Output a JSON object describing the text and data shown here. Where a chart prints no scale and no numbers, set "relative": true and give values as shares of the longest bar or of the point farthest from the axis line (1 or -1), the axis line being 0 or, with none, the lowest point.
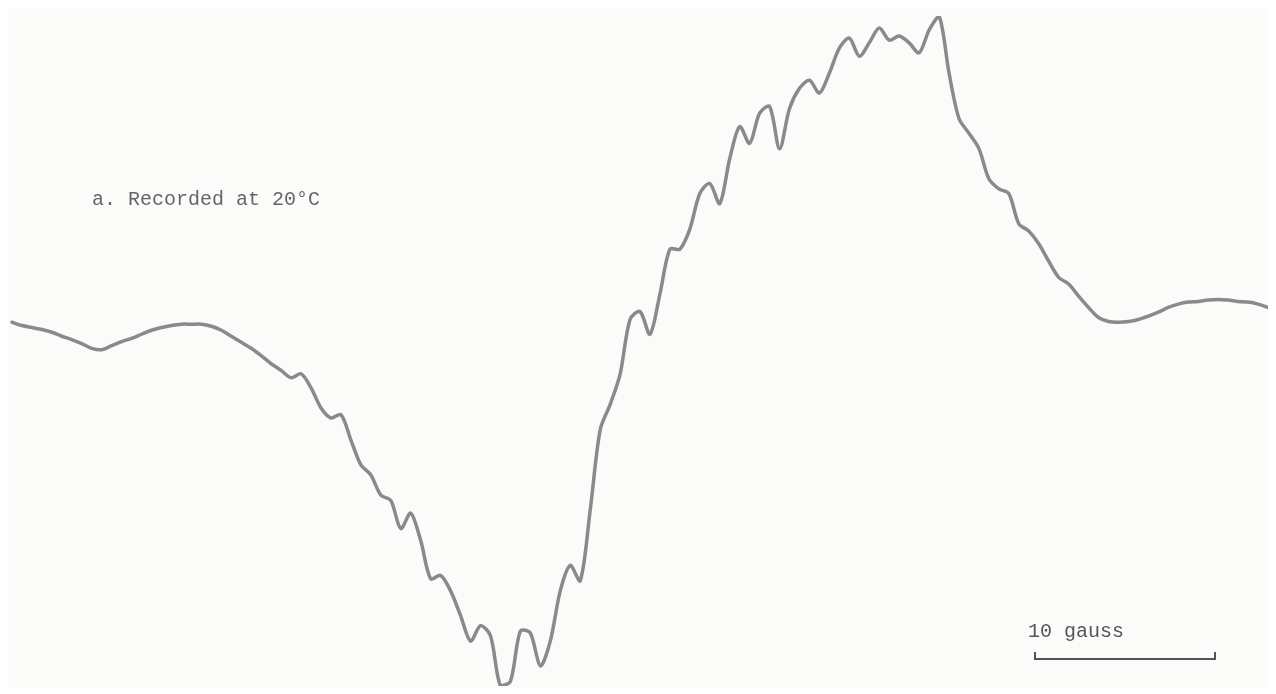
{
  "chart_data": {
    "type": "line",
    "relative": true,
    "color": "#8a8a8a",
    "marker": "none",
    "line_style": "solid",
    "legend": false,
    "tick_labels": false,
    "categories": [
      null,
      null,
      null,
      null,
      null,
      null,
      null,
      null,
      null,
      null,
      null,
      null,
      null,
      null,
      null,
      null,
      null,
      null,
      null,
      null,
      null,
      null,
      null,
      null,
      null,
      null,
      null,
      null,
      null,
      null,
      null,
      null,
      null,
      null,
      null,
      null,
      null,
      null,
      null,
      null,
      null,
      null,
      null,
      null,
      null,
      null,
      null,
      null,
      null,
      null,
      null,
      null,
      null,
      null,
      null,
      null,
      null,
      null,
      null,
      null,
      null,
      null,
      null,
      null,
      null,
      null,
      null,
      null,
      null,
      null,
      null,
      null,
      null,
      null,
      null,
      null,
      null,
      null,
      null,
      null,
      null,
      null,
      null,
      null,
      null,
      null,
      null,
      null,
      null,
      null,
      null,
      null,
      null,
      null,
      null,
      null,
      null,
      null,
      null,
      null,
      null,
      null,
      null,
      null,
      null,
      null,
      null,
      null,
      null,
      null,
      null,
      null,
      null,
      null,
      null,
      null,
      null,
      null,
      null,
      null,
      null,
      null,
      null,
      null,
      null,
      null,
      null
    ],
    "values": [
      0.543,
      0.538,
      0.535,
      0.532,
      0.528,
      0.522,
      0.517,
      0.511,
      0.504,
      0.502,
      0.508,
      0.514,
      0.519,
      0.525,
      0.531,
      0.535,
      0.538,
      0.54,
      0.54,
      0.54,
      0.537,
      0.531,
      0.522,
      0.513,
      0.504,
      0.493,
      0.481,
      0.471,
      0.46,
      0.466,
      0.445,
      0.415,
      0.4,
      0.405,
      0.367,
      0.33,
      0.315,
      0.285,
      0.277,
      0.235,
      0.258,
      0.217,
      0.16,
      0.165,
      0.142,
      0.105,
      0.067,
      0.09,
      0.075,
      0,
      0.007,
      0.082,
      0.079,
      0.03,
      0.067,
      0.142,
      0.18,
      0.157,
      0.262,
      0.382,
      0.42,
      0.465,
      0.547,
      0.559,
      0.525,
      0.585,
      0.652,
      0.652,
      0.682,
      0.735,
      0.75,
      0.72,
      0.787,
      0.835,
      0.81,
      0.855,
      0.865,
      0.802,
      0.862,
      0.892,
      0.904,
      0.885,
      0.915,
      0.952,
      0.967,
      0.94,
      0.96,
      0.982,
      0.964,
      0.97,
      0.96,
      0.945,
      0.979,
      1,
      0.915,
      0.847,
      0.825,
      0.802,
      0.757,
      0.742,
      0.735,
      0.69,
      0.679,
      0.66,
      0.634,
      0.61,
      0.6,
      0.582,
      0.565,
      0.55,
      0.544,
      0.543,
      0.544,
      0.547,
      0.552,
      0.558,
      0.565,
      0.57,
      0.573,
      0.574,
      0.576,
      0.577,
      0.576,
      0.574,
      0.573,
      0.57,
      0.565
    ],
    "annotations": [
      "a. Recorded at 20°C",
      "10 gauss"
    ]
  }
}
